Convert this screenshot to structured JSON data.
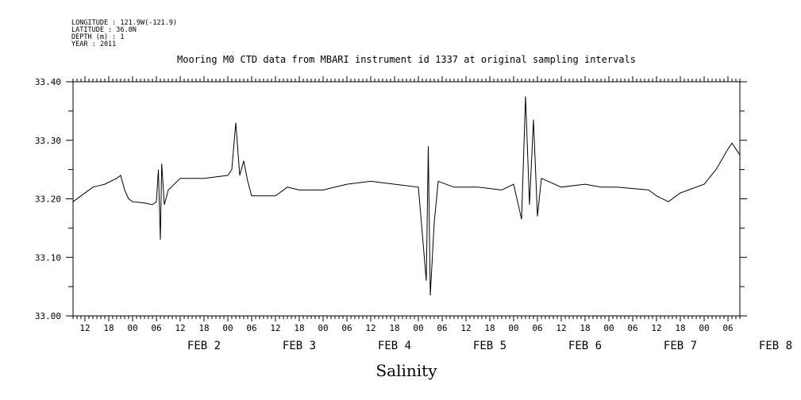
{
  "header": {
    "lines": [
      "LONGITUDE : 121.9W(-121.9)",
      "LATITUDE : 36.8N",
      "DEPTH (m) : 1",
      "YEAR : 2011"
    ]
  },
  "chart_data": {
    "type": "line",
    "title": "Mooring M0 CTD data from MBARI instrument id 1337 at original sampling intervals",
    "xlabel": "Salinity",
    "ylabel": "",
    "ylim": [
      33.0,
      33.4
    ],
    "xlim": [
      "FEB 1 03:00",
      "FEB 8 03:00"
    ],
    "yticks": [
      "33.00",
      "33.10",
      "33.20",
      "33.30",
      "33.40"
    ],
    "hour_ticks": [
      "06",
      "12",
      "18",
      "00"
    ],
    "day_labels": [
      "FEB  2",
      "FEB  3",
      "FEB  4",
      "FEB  5",
      "FEB  6",
      "FEB  7",
      "FEB  8"
    ],
    "grid": false,
    "series": [
      {
        "points": [
          [
            "FEB 1 03:00",
            33.195
          ],
          [
            "FEB 1 05:00",
            33.205
          ],
          [
            "FEB 1 08:00",
            33.22
          ],
          [
            "FEB 1 11:00",
            33.225
          ],
          [
            "FEB 1 14:00",
            33.235
          ],
          [
            "FEB 1 15:00",
            33.24
          ],
          [
            "FEB 1 16:00",
            33.215
          ],
          [
            "FEB 1 17:00",
            33.2
          ],
          [
            "FEB 1 18:00",
            33.195
          ],
          [
            "FEB 1 21:00",
            33.193
          ],
          [
            "FEB 1 23:00",
            33.19
          ],
          [
            "FEB 2 00:00",
            33.195
          ],
          [
            "FEB 2 00:30",
            33.25
          ],
          [
            "FEB 2 01:00",
            33.13
          ],
          [
            "FEB 2 01:20",
            33.26
          ],
          [
            "FEB 2 02:00",
            33.19
          ],
          [
            "FEB 2 03:00",
            33.215
          ],
          [
            "FEB 2 06:00",
            33.235
          ],
          [
            "FEB 2 12:00",
            33.235
          ],
          [
            "FEB 2 18:00",
            33.24
          ],
          [
            "FEB 2 19:00",
            33.25
          ],
          [
            "FEB 2 20:00",
            33.33
          ],
          [
            "FEB 2 21:00",
            33.24
          ],
          [
            "FEB 2 22:00",
            33.265
          ],
          [
            "FEB 2 23:00",
            33.23
          ],
          [
            "FEB 3 00:00",
            33.205
          ],
          [
            "FEB 3 06:00",
            33.205
          ],
          [
            "FEB 3 09:00",
            33.22
          ],
          [
            "FEB 3 12:00",
            33.215
          ],
          [
            "FEB 3 18:00",
            33.215
          ],
          [
            "FEB 4 00:00",
            33.225
          ],
          [
            "FEB 4 06:00",
            33.23
          ],
          [
            "FEB 4 12:00",
            33.225
          ],
          [
            "FEB 4 18:00",
            33.22
          ],
          [
            "FEB 4 20:00",
            33.06
          ],
          [
            "FEB 4 20:30",
            33.29
          ],
          [
            "FEB 4 21:00",
            33.035
          ],
          [
            "FEB 4 22:00",
            33.16
          ],
          [
            "FEB 4 23:00",
            33.23
          ],
          [
            "FEB 5 03:00",
            33.22
          ],
          [
            "FEB 5 09:00",
            33.22
          ],
          [
            "FEB 5 15:00",
            33.215
          ],
          [
            "FEB 5 18:00",
            33.225
          ],
          [
            "FEB 5 20:00",
            33.165
          ],
          [
            "FEB 5 21:00",
            33.375
          ],
          [
            "FEB 5 22:00",
            33.19
          ],
          [
            "FEB 5 23:00",
            33.335
          ],
          [
            "FEB 6 00:00",
            33.17
          ],
          [
            "FEB 6 01:00",
            33.235
          ],
          [
            "FEB 6 06:00",
            33.22
          ],
          [
            "FEB 6 12:00",
            33.225
          ],
          [
            "FEB 6 16:00",
            33.22
          ],
          [
            "FEB 6 20:00",
            33.22
          ],
          [
            "FEB 7 04:00",
            33.215
          ],
          [
            "FEB 7 06:00",
            33.205
          ],
          [
            "FEB 7 09:00",
            33.195
          ],
          [
            "FEB 7 12:00",
            33.21
          ],
          [
            "FEB 7 18:00",
            33.225
          ],
          [
            "FEB 7 21:00",
            33.25
          ],
          [
            "FEB 8 00:00",
            33.285
          ],
          [
            "FEB 8 01:00",
            33.295
          ],
          [
            "FEB 8 03:00",
            33.275
          ]
        ]
      }
    ]
  }
}
